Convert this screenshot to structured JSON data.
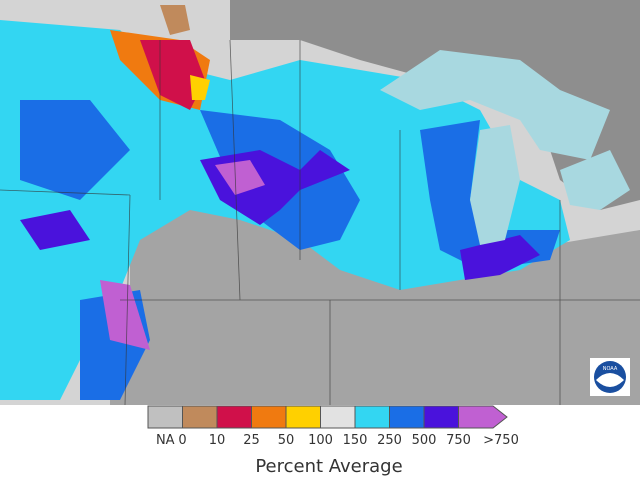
{
  "legend": {
    "title": "Percent Average",
    "labels": [
      "NA",
      "0",
      "10",
      "25",
      "50",
      "100",
      "150",
      "250",
      "500",
      "750",
      ">750"
    ],
    "colors": [
      "#c0c0c0",
      "#c08a5c",
      "#d0104a",
      "#f07a10",
      "#ffd000",
      "#e2e2e2",
      "#33d6f2",
      "#1a6ee6",
      "#4a12dc",
      "#c060d2"
    ]
  },
  "logo": "NOAA"
}
